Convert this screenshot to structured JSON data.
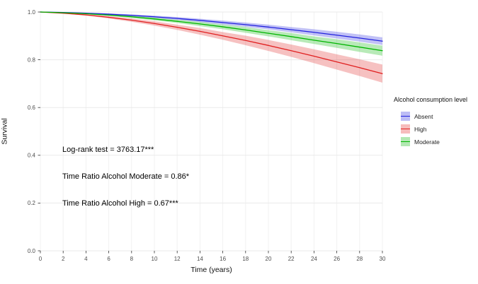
{
  "chart_data": {
    "type": "line",
    "title": "",
    "xlabel": "Time (years)",
    "ylabel": "Survival",
    "xlim": [
      0,
      30
    ],
    "ylim": [
      0,
      1
    ],
    "grid": true,
    "x_ticks": [
      0,
      2,
      4,
      6,
      8,
      10,
      12,
      14,
      16,
      18,
      20,
      22,
      24,
      26,
      28,
      30
    ],
    "y_ticks": [
      0.0,
      0.2,
      0.4,
      0.6,
      0.8,
      1.0
    ],
    "y_tick_labels": [
      "0.0",
      "0.2",
      "0.4",
      "0.6",
      "0.8",
      "1.0"
    ],
    "x": [
      0,
      2,
      4,
      6,
      8,
      10,
      12,
      14,
      16,
      18,
      20,
      22,
      24,
      26,
      28,
      30
    ],
    "series": [
      {
        "name": "Absent",
        "color": "#2222dd",
        "values": [
          1.0,
          0.998,
          0.995,
          0.991,
          0.986,
          0.98,
          0.973,
          0.965,
          0.956,
          0.947,
          0.937,
          0.926,
          0.915,
          0.903,
          0.891,
          0.878
        ],
        "lower": [
          1.0,
          0.997,
          0.993,
          0.988,
          0.982,
          0.975,
          0.967,
          0.958,
          0.948,
          0.938,
          0.927,
          0.915,
          0.902,
          0.889,
          0.876,
          0.862
        ],
        "upper": [
          1.0,
          0.999,
          0.997,
          0.994,
          0.99,
          0.985,
          0.979,
          0.972,
          0.964,
          0.956,
          0.947,
          0.937,
          0.928,
          0.917,
          0.906,
          0.894
        ]
      },
      {
        "name": "High",
        "color": "#e02020",
        "values": [
          1.0,
          0.995,
          0.988,
          0.978,
          0.966,
          0.952,
          0.936,
          0.919,
          0.9,
          0.881,
          0.86,
          0.838,
          0.815,
          0.791,
          0.767,
          0.742
        ],
        "lower": [
          1.0,
          0.994,
          0.985,
          0.973,
          0.959,
          0.943,
          0.925,
          0.905,
          0.884,
          0.861,
          0.837,
          0.812,
          0.786,
          0.759,
          0.732,
          0.704
        ],
        "upper": [
          1.0,
          0.996,
          0.991,
          0.983,
          0.973,
          0.961,
          0.947,
          0.933,
          0.916,
          0.901,
          0.883,
          0.864,
          0.844,
          0.823,
          0.802,
          0.78
        ]
      },
      {
        "name": "Moderate",
        "color": "#00b400",
        "values": [
          1.0,
          0.997,
          0.993,
          0.987,
          0.98,
          0.971,
          0.961,
          0.95,
          0.938,
          0.925,
          0.911,
          0.897,
          0.882,
          0.868,
          0.853,
          0.838
        ],
        "lower": [
          1.0,
          0.996,
          0.991,
          0.984,
          0.975,
          0.965,
          0.954,
          0.941,
          0.928,
          0.913,
          0.898,
          0.882,
          0.866,
          0.85,
          0.833,
          0.817
        ],
        "upper": [
          1.0,
          0.998,
          0.995,
          0.99,
          0.985,
          0.977,
          0.968,
          0.959,
          0.948,
          0.937,
          0.924,
          0.912,
          0.898,
          0.886,
          0.873,
          0.859
        ]
      }
    ],
    "legend": {
      "title": "Alcohol consumption level",
      "position": "right",
      "entries": [
        "Absent",
        "High",
        "Moderate"
      ]
    },
    "annotations": [
      {
        "text": "Log-rank test = 3763.17***"
      },
      {
        "text": "Time Ratio Alcohol Moderate = 0.86*"
      },
      {
        "text": "Time Ratio Alcohol High = 0.67***"
      }
    ]
  }
}
